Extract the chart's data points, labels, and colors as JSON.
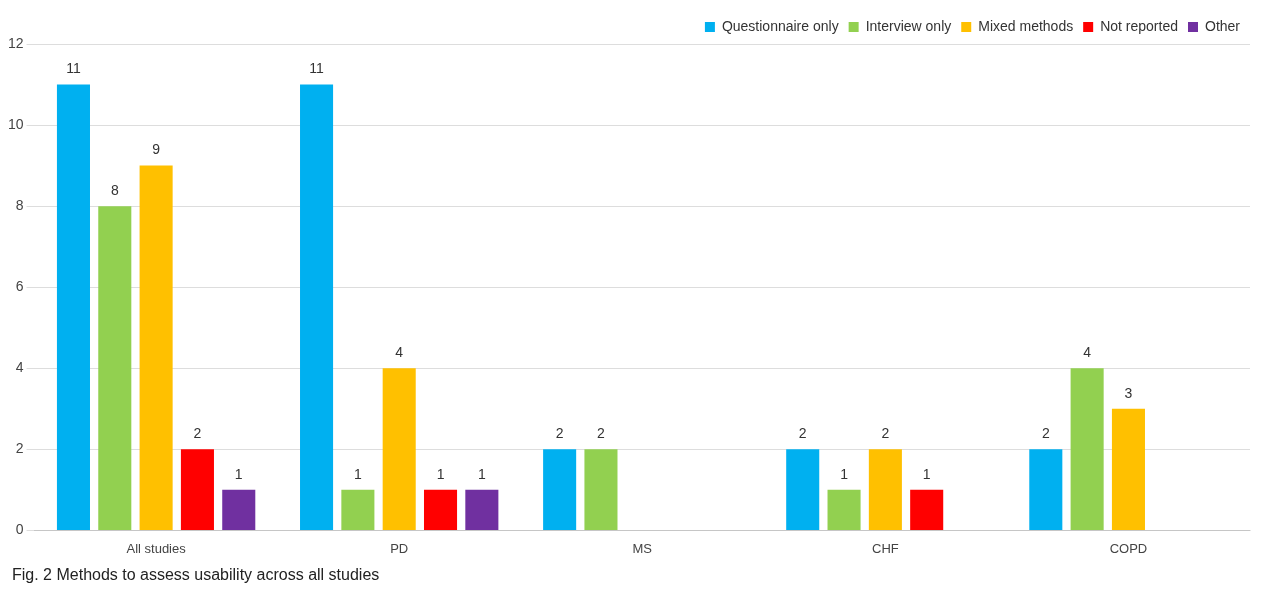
{
  "chart_data": {
    "type": "bar",
    "categories": [
      "All studies",
      "PD",
      "MS",
      "CHF",
      "COPD"
    ],
    "series": [
      {
        "name": "Questionnaire only",
        "color": "#00b0f0",
        "values": [
          11,
          11,
          2,
          2,
          2
        ]
      },
      {
        "name": "Interview only",
        "color": "#92d050",
        "values": [
          8,
          1,
          2,
          1,
          4
        ]
      },
      {
        "name": "Mixed methods",
        "color": "#ffc000",
        "values": [
          9,
          4,
          null,
          2,
          3
        ]
      },
      {
        "name": "Not reported",
        "color": "#ff0000",
        "values": [
          2,
          1,
          null,
          1,
          null
        ]
      },
      {
        "name": "Other",
        "color": "#7030a0",
        "values": [
          1,
          1,
          null,
          null,
          null
        ]
      }
    ],
    "ylim": [
      0,
      12
    ],
    "yticks": [
      0,
      2,
      4,
      6,
      8,
      10,
      12
    ],
    "grid": "y",
    "legend": "top right",
    "data_labels": true,
    "annotations": [
      "Fig. 2 Methods to assess usability across all studies"
    ]
  }
}
